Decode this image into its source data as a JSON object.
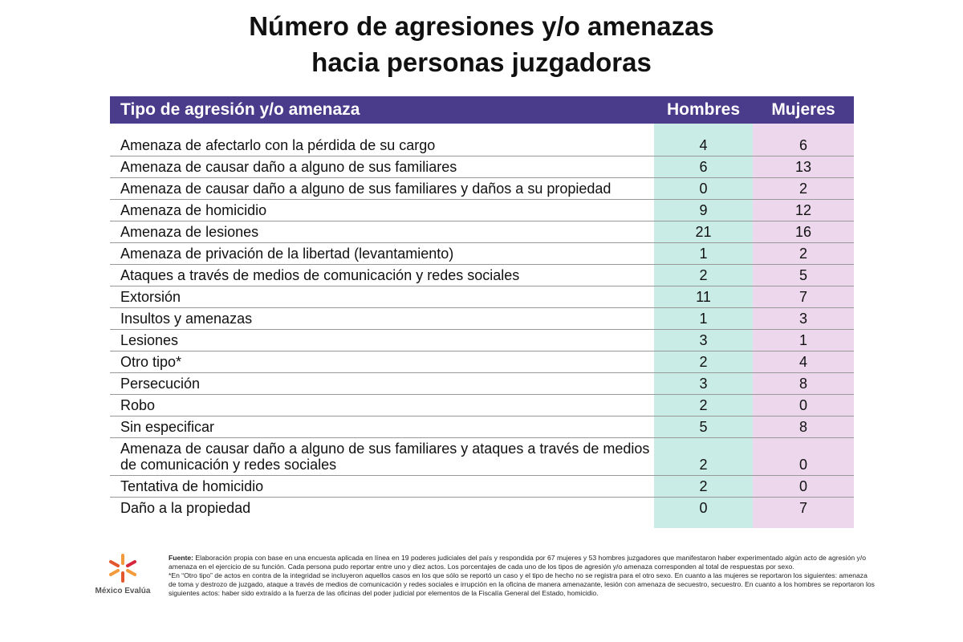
{
  "header": {
    "title_lines": [
      "Número de agresiones y/o amenazas",
      "hacia personas juzgadoras"
    ]
  },
  "table": {
    "columns": [
      "Tipo de agresión y/o amenaza",
      "Hombres",
      "Mujeres"
    ],
    "rows": [
      [
        "Amenaza de afectarlo con la pérdida de su cargo",
        4,
        6
      ],
      [
        "Amenaza de causar daño a alguno de sus familiares",
        6,
        13
      ],
      [
        "Amenaza de causar daño a alguno de sus familiares y daños a su propiedad",
        0,
        2
      ],
      [
        "Amenaza de homicidio",
        9,
        12
      ],
      [
        "Amenaza de lesiones",
        21,
        16
      ],
      [
        "Amenaza de privación de la libertad (levantamiento)",
        1,
        2
      ],
      [
        "Ataques a través de medios de comunicación y redes sociales",
        2,
        5
      ],
      [
        "Extorsión",
        11,
        7
      ],
      [
        "Insultos y amenazas",
        1,
        3
      ],
      [
        "Lesiones",
        3,
        1
      ],
      [
        "Otro tipo*",
        2,
        4
      ],
      [
        "Persecución",
        3,
        8
      ],
      [
        "Robo",
        2,
        0
      ],
      [
        "Sin especificar",
        5,
        8
      ],
      [
        "Amenaza de causar daño a alguno de sus familiares y ataques a través de medios de comunicación y redes sociales",
        2,
        0
      ],
      [
        "Tentativa de homicidio",
        2,
        0
      ],
      [
        "Daño a la propiedad",
        0,
        7
      ]
    ]
  },
  "footer": {
    "logo": "México Evalúa",
    "source_label": "Fuente:",
    "source_text": "Elaboración propia con base en una encuesta aplicada en línea en 19 poderes judiciales del país y respondida por 67 mujeres y 53 hombres juzgadores que manifestaron haber experimentado algún acto de agresión y/o amenaza en el ejercicio de su función. Cada persona pudo reportar entre uno y diez actos. Los porcentajes de cada uno de los tipos de agresión y/o amenaza corresponden al total de respuestas por sexo.",
    "note": "*En “Otro tipo” de actos en contra de la integridad se incluyeron aquellos casos en los que sólo se reportó un caso y el tipo de hecho no se registra para el otro sexo. En cuanto a las mujeres se reportaron los siguientes: amenaza de toma y destrozo de juzgado, ataque a través de medios de comunicación y redes sociales e irrupción en la oficina de manera amenazante, lesión con amenaza de secuestro, secuestro. En cuanto a los hombres se reportaron los siguientes actos: haber sido extraído a la fuerza de las oficinas del poder judicial por elementos de la Fiscalía General del Estado, homicidio."
  }
}
